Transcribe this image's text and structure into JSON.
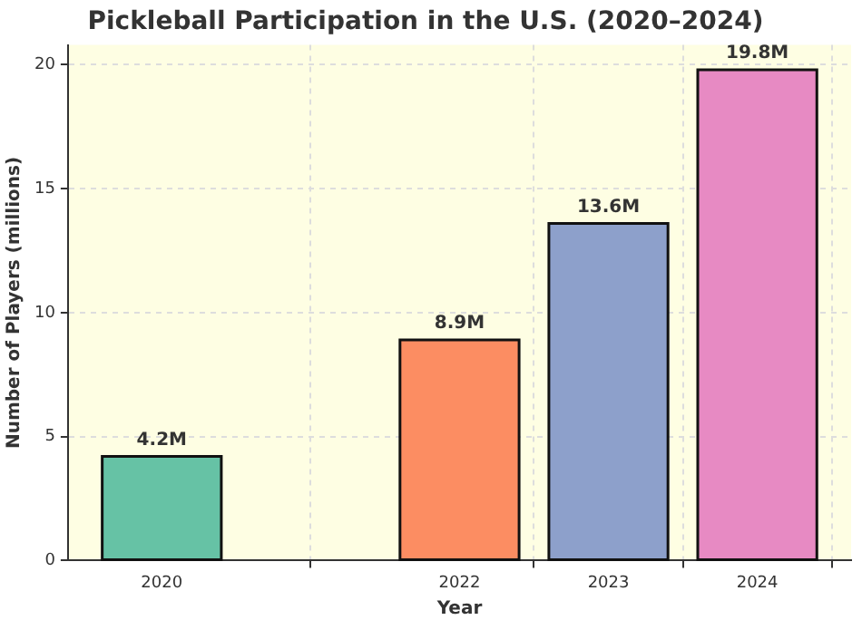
{
  "chart_data": {
    "type": "bar",
    "title": "Pickleball Participation in the U.S. (2020–2024)",
    "xlabel": "Year",
    "ylabel": "Number of Players (millions)",
    "x": [
      2020,
      2022,
      2023,
      2024
    ],
    "values": [
      4.2,
      8.9,
      13.6,
      19.8
    ],
    "colors": [
      "#66c2a5",
      "#fc8d62",
      "#8da0cb",
      "#e78ac3"
    ],
    "value_labels": [
      "4.2M",
      "8.9M",
      "13.6M",
      "19.8M"
    ],
    "xlim": [
      2019.37,
      2024.63
    ],
    "xticks": [
      2020,
      2022,
      2023,
      2024
    ],
    "ylim": [
      0,
      20.8
    ],
    "yticks": [
      0,
      5,
      10,
      15,
      20
    ],
    "grid": true
  }
}
